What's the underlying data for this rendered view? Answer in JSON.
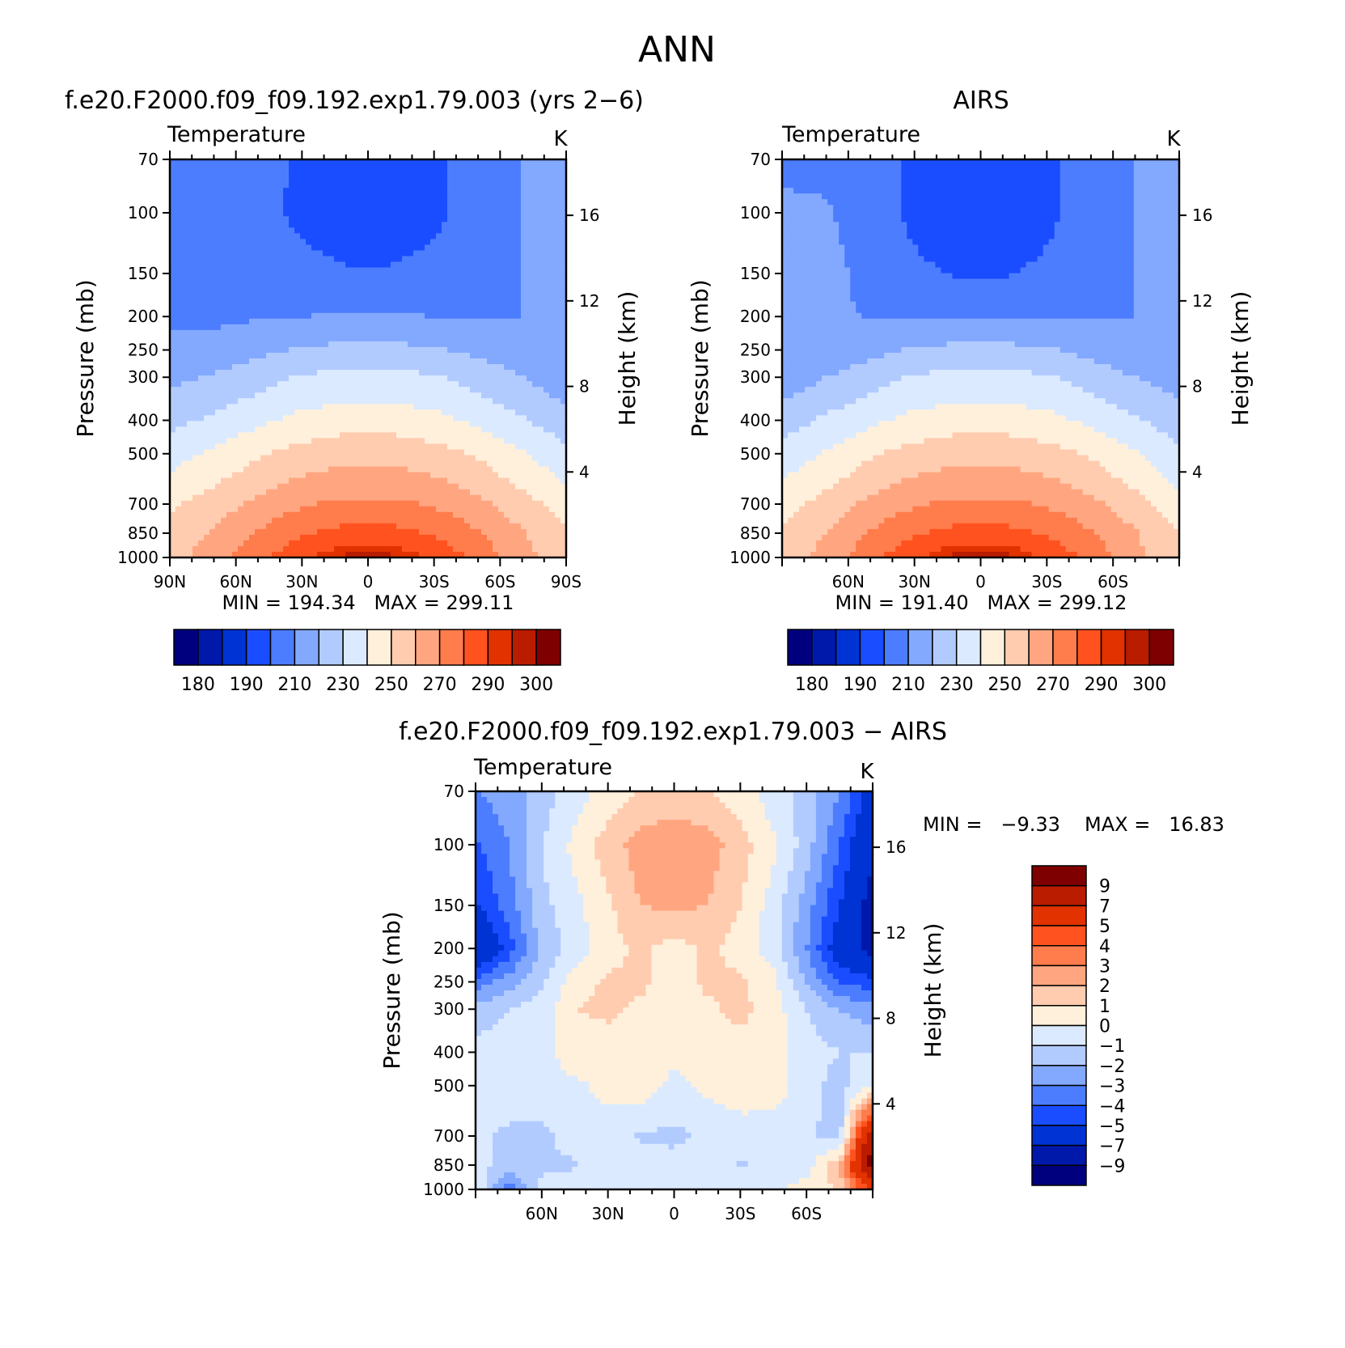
{
  "figure_title": "ANN",
  "chart_data": [
    {
      "type": "heatmap",
      "panel": "model",
      "title": "f.e20.F2000.f09_f09.192.exp1.79.003 (yrs 2−6)",
      "subtitle_left": "Temperature",
      "subtitle_right": "K",
      "ylabel": "Pressure (mb)",
      "ylabel_right": "Height (km)",
      "y_scale": "log-pressure",
      "ylim": [
        1000,
        70
      ],
      "y_ticks": [
        "70",
        "100",
        "150",
        "200",
        "250",
        "300",
        "400",
        "500",
        "700",
        "850",
        "1000"
      ],
      "y_right_ticks": [
        "16",
        "12",
        "8",
        "4"
      ],
      "xlim": [
        90,
        -90
      ],
      "x_ticks": [
        "90N",
        "60N",
        "30N",
        "0",
        "30S",
        "60S",
        "90S"
      ],
      "stats": "MIN = 194.34   MAX = 299.11",
      "colorbar_labels": [
        "180",
        "190",
        "210",
        "230",
        "250",
        "270",
        "290",
        "300"
      ],
      "x": [
        90,
        70,
        50,
        30,
        10,
        -10,
        -30,
        -50,
        -70,
        -90
      ],
      "y": [
        70,
        100,
        150,
        200,
        250,
        300,
        400,
        500,
        700,
        850,
        1000
      ],
      "z": [
        [
          206,
          206,
          204,
          198,
          196,
          196,
          198,
          204,
          210,
          212
        ],
        [
          206,
          206,
          203,
          198,
          195,
          195,
          198,
          204,
          210,
          212
        ],
        [
          207,
          206,
          205,
          203,
          201,
          201,
          203,
          206,
          210,
          212
        ],
        [
          208,
          208,
          209,
          210,
          211,
          211,
          210,
          209,
          210,
          212
        ],
        [
          213,
          214,
          218,
          221,
          223,
          223,
          221,
          218,
          214,
          212
        ],
        [
          218,
          221,
          226,
          231,
          233,
          233,
          231,
          226,
          220,
          214
        ],
        [
          227,
          232,
          238,
          243,
          246,
          246,
          243,
          238,
          231,
          224
        ],
        [
          236,
          242,
          249,
          254,
          257,
          257,
          254,
          249,
          241,
          233
        ],
        [
          248,
          255,
          263,
          269,
          272,
          272,
          269,
          263,
          254,
          245
        ],
        [
          254,
          261,
          271,
          279,
          284,
          284,
          279,
          271,
          261,
          252
        ],
        [
          256,
          265,
          277,
          288,
          297,
          297,
          288,
          277,
          263,
          254
        ]
      ]
    },
    {
      "type": "heatmap",
      "panel": "obs",
      "title": "AIRS",
      "subtitle_left": "Temperature",
      "subtitle_right": "K",
      "ylabel": "Pressure (mb)",
      "ylabel_right": "Height (km)",
      "y_scale": "log-pressure",
      "ylim": [
        1000,
        70
      ],
      "y_ticks": [
        "70",
        "100",
        "150",
        "200",
        "250",
        "300",
        "400",
        "500",
        "700",
        "850",
        "1000"
      ],
      "y_right_ticks": [
        "16",
        "12",
        "8",
        "4"
      ],
      "xlim": [
        90,
        -90
      ],
      "x_ticks": [
        "60N",
        "30N",
        "0",
        "30S",
        "60S"
      ],
      "stats": "MIN = 191.40   MAX = 299.12",
      "colorbar_labels": [
        "180",
        "190",
        "210",
        "230",
        "250",
        "270",
        "290",
        "300"
      ],
      "x": [
        90,
        70,
        50,
        30,
        10,
        -10,
        -30,
        -50,
        -70,
        -90
      ],
      "y": [
        70,
        100,
        150,
        200,
        250,
        300,
        400,
        500,
        700,
        850,
        1000
      ],
      "z": [
        [
          208,
          208,
          205,
          198,
          194,
          194,
          198,
          205,
          210,
          212
        ],
        [
          212,
          211,
          205,
          198,
          194,
          194,
          198,
          205,
          210,
          212
        ],
        [
          215,
          214,
          206,
          202,
          199,
          199,
          202,
          206,
          210,
          212
        ],
        [
          215,
          213,
          209,
          209,
          210,
          210,
          209,
          209,
          210,
          212
        ],
        [
          210,
          212,
          217,
          221,
          223,
          223,
          221,
          217,
          213,
          212
        ],
        [
          214,
          220,
          226,
          231,
          233,
          233,
          231,
          226,
          220,
          216
        ],
        [
          225,
          232,
          238,
          243,
          246,
          246,
          243,
          238,
          231,
          225
        ],
        [
          234,
          241,
          249,
          254,
          257,
          257,
          254,
          249,
          241,
          232
        ],
        [
          246,
          254,
          263,
          269,
          272,
          272,
          269,
          263,
          254,
          243
        ],
        [
          252,
          260,
          271,
          279,
          284,
          284,
          279,
          271,
          261,
          250
        ],
        [
          254,
          264,
          277,
          288,
          298,
          298,
          288,
          277,
          263,
          252
        ]
      ]
    },
    {
      "type": "heatmap",
      "panel": "difference",
      "title": "f.e20.F2000.f09_f09.192.exp1.79.003 − AIRS",
      "subtitle_left": "Temperature",
      "subtitle_right": "K",
      "ylabel": "Pressure (mb)",
      "ylabel_right": "Height (km)",
      "y_scale": "log-pressure",
      "ylim": [
        1000,
        70
      ],
      "y_ticks": [
        "70",
        "100",
        "150",
        "200",
        "250",
        "300",
        "400",
        "500",
        "700",
        "850",
        "1000"
      ],
      "y_right_ticks": [
        "16",
        "12",
        "8",
        "4"
      ],
      "xlim": [
        90,
        -90
      ],
      "x_ticks": [
        "60N",
        "30N",
        "0",
        "30S",
        "60S"
      ],
      "stats_min": "MIN =   −9.33",
      "stats_max": "MAX =   16.83",
      "colorbar_labels": [
        "9",
        "7",
        "5",
        "4",
        "3",
        "2",
        "1",
        "0",
        "−1",
        "−2",
        "−3",
        "−4",
        "−5",
        "−7",
        "−9"
      ],
      "x": [
        88,
        75,
        60,
        45,
        30,
        15,
        0,
        -15,
        -30,
        -45,
        -60,
        -75,
        -88
      ],
      "y": [
        70,
        100,
        150,
        200,
        250,
        300,
        400,
        500,
        700,
        850,
        1000
      ],
      "z": [
        [
          -3,
          -2.5,
          -1.5,
          -0.5,
          0.5,
          1,
          1.2,
          1,
          0.5,
          -0.5,
          -1.5,
          -3,
          -5.5
        ],
        [
          -4,
          -3,
          -1,
          0.3,
          1.5,
          2.5,
          3,
          2.5,
          1.5,
          0.2,
          -1.5,
          -4,
          -6.5
        ],
        [
          -5,
          -3.5,
          -1.3,
          -0.3,
          0.8,
          2,
          2.2,
          2,
          1,
          -0.5,
          -2.5,
          -5,
          -7.5
        ],
        [
          -6.5,
          -4.5,
          -1.8,
          -0.5,
          0.6,
          1.2,
          0.5,
          1.2,
          0.6,
          -0.5,
          -3,
          -6,
          -7.5
        ],
        [
          -3.5,
          -2.5,
          -1.2,
          0.5,
          1.2,
          1.2,
          0.6,
          1.2,
          1.2,
          0.3,
          -2,
          -4,
          -4.5
        ],
        [
          -1.5,
          -1,
          -0.5,
          1,
          1.2,
          0.8,
          0.5,
          0.8,
          1.3,
          0.5,
          -1,
          -2,
          -2.5
        ],
        [
          -0.6,
          -0.5,
          -0.3,
          0.5,
          0.5,
          0.4,
          0.3,
          0.4,
          0.5,
          0.4,
          -0.5,
          -1,
          -1
        ],
        [
          -0.5,
          -0.5,
          -0.5,
          -0.2,
          0.3,
          0.5,
          -0.3,
          0.2,
          0.6,
          0.5,
          -0.5,
          -1.5,
          0
        ],
        [
          -0.8,
          -1.2,
          -1.2,
          -0.6,
          -0.6,
          -1.1,
          -1.3,
          -0.8,
          -0.6,
          -0.6,
          -0.8,
          -1.5,
          8
        ],
        [
          -0.8,
          -1.2,
          -1.2,
          -1.1,
          -0.6,
          -0.5,
          -0.5,
          -0.6,
          -1.1,
          -0.6,
          -0.5,
          2,
          9.5
        ],
        [
          -0.5,
          -4,
          -0.6,
          -0.4,
          -0.3,
          -0.3,
          -0.3,
          -0.3,
          -0.3,
          -0.3,
          0.5,
          1,
          5
        ]
      ]
    }
  ],
  "colors": {
    "temperature_levels": [
      180,
      185,
      190,
      200,
      210,
      220,
      230,
      240,
      250,
      260,
      270,
      280,
      290,
      295,
      300
    ],
    "difference_levels": [
      -9,
      -7,
      -5,
      -4,
      -3,
      -2,
      -1,
      0,
      1,
      2,
      3,
      4,
      5,
      7,
      9
    ],
    "palette": [
      "#00007f",
      "#0019aa",
      "#0033d4",
      "#1a4dff",
      "#4c7dff",
      "#83a9ff",
      "#b2cbff",
      "#dbeaff",
      "#fff0dc",
      "#ffccb0",
      "#ffa680",
      "#ff7c4c",
      "#ff521f",
      "#e13200",
      "#ba1c00",
      "#7f0000"
    ]
  }
}
